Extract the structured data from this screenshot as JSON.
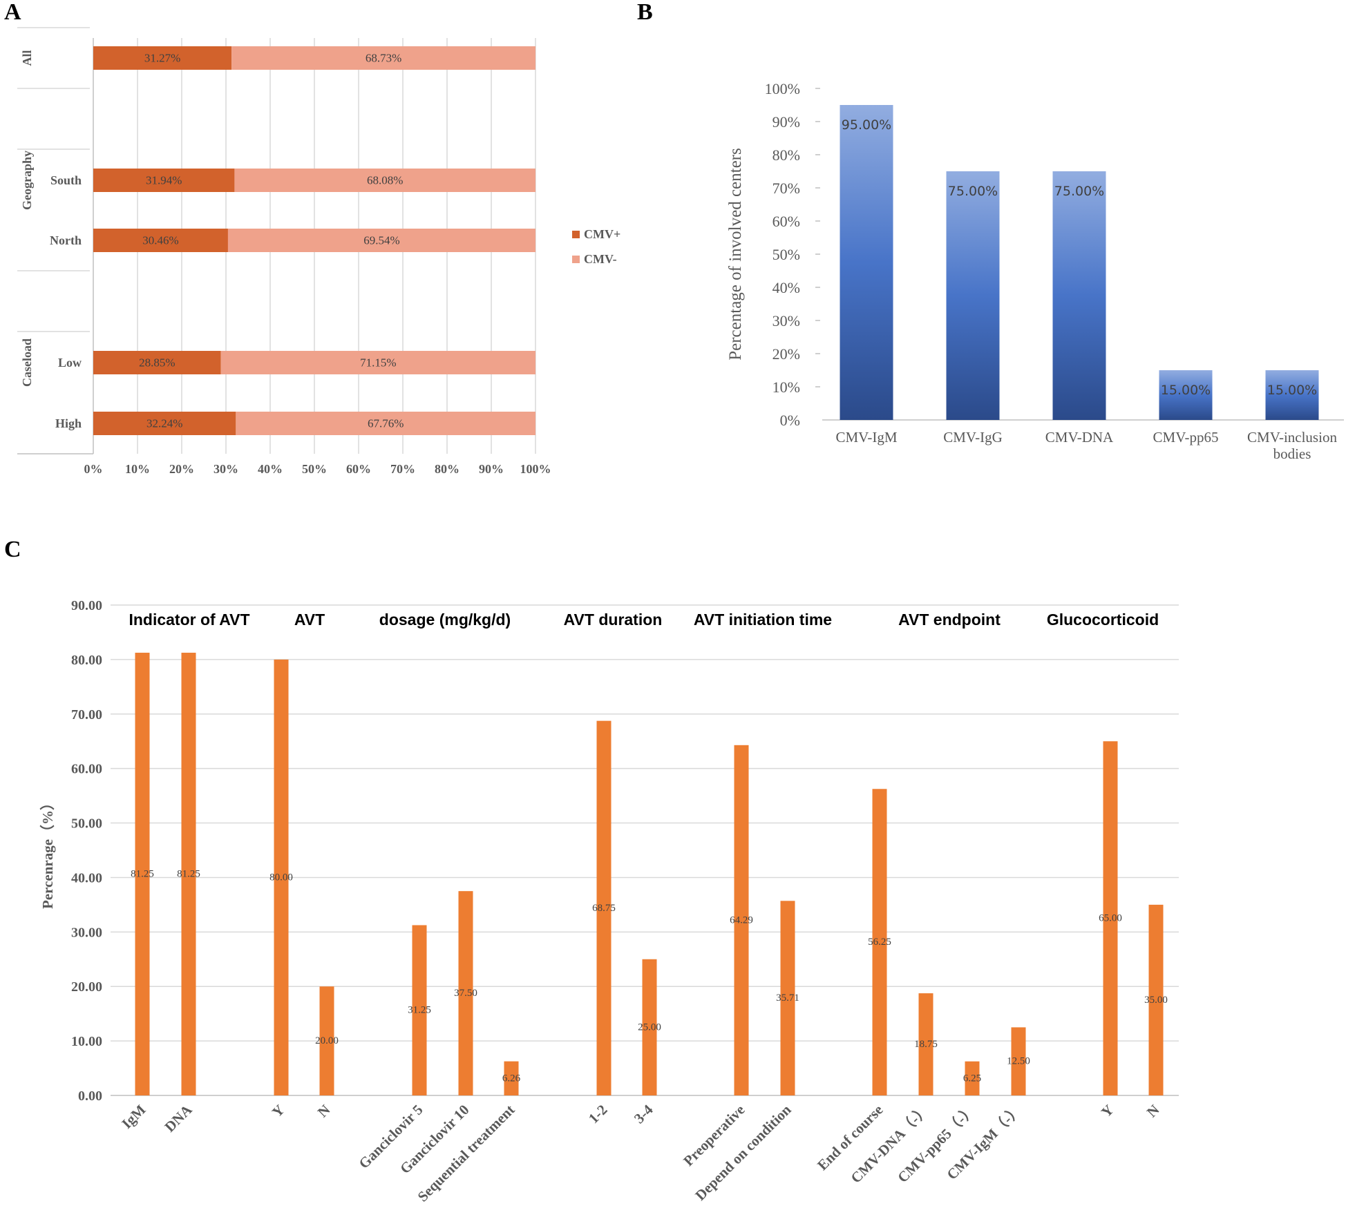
{
  "panels": {
    "a": "A",
    "b": "B",
    "c": "C"
  },
  "colors": {
    "cmv_pos": "#d2622c",
    "cmv_neg": "#efa28b",
    "blue_top": "#92ade0",
    "blue_mid": "#4874c8",
    "blue_bottom": "#2b4a8a",
    "orange": "#ed7d31"
  },
  "chart_data": [
    {
      "id": "A",
      "type": "bar",
      "orientation": "horizontal",
      "stacked": true,
      "xlim": [
        0,
        100
      ],
      "xticks": [
        "0%",
        "10%",
        "20%",
        "30%",
        "40%",
        "50%",
        "60%",
        "70%",
        "80%",
        "90%",
        "100%"
      ],
      "groups": [
        {
          "name": "All",
          "rows": [
            {
              "label": "",
              "pos": 31.27,
              "neg": 68.73
            }
          ]
        },
        {
          "name": "Geography",
          "rows": [
            {
              "label": "South",
              "pos": 31.94,
              "neg": 68.08
            },
            {
              "label": "North",
              "pos": 30.46,
              "neg": 69.54
            }
          ]
        },
        {
          "name": "Caseload",
          "rows": [
            {
              "label": "Low",
              "pos": 28.85,
              "neg": 71.15
            },
            {
              "label": "High",
              "pos": 32.24,
              "neg": 67.76
            }
          ]
        }
      ],
      "labels": {
        "All": "31.27%|68.73%",
        "South": "31.94%|68.08%",
        "North": "30.46%|69.54%",
        "Low": "28.85%|71.15%",
        "High": "32.24%|67.76%"
      },
      "legend": [
        "CMV+",
        "CMV-"
      ],
      "legend_position": "right"
    },
    {
      "id": "B",
      "type": "bar",
      "ylabel": "Percentage of involved centers",
      "ylim": [
        0,
        100
      ],
      "yticks": [
        "0%",
        "10%",
        "20%",
        "30%",
        "40%",
        "50%",
        "60%",
        "70%",
        "80%",
        "90%",
        "100%"
      ],
      "categories": [
        "CMV-IgM",
        "CMV-IgG",
        "CMV-DNA",
        "CMV-pp65",
        "CMV-inclusion bodies"
      ],
      "values": [
        95,
        75,
        75,
        15,
        15
      ],
      "value_labels": [
        "95.00%",
        "75.00%",
        "75.00%",
        "15.00%",
        "15.00%"
      ]
    },
    {
      "id": "C",
      "type": "bar",
      "ylabel": "Percenrage（%）",
      "ylim": [
        0,
        90
      ],
      "yticks": [
        "0.00",
        "10.00",
        "20.00",
        "30.00",
        "40.00",
        "50.00",
        "60.00",
        "70.00",
        "80.00",
        "90.00"
      ],
      "groups": [
        {
          "title": "Indicator of AVT",
          "items": [
            {
              "label": "IgM",
              "value": 81.25,
              "text": "81.25"
            },
            {
              "label": "DNA",
              "value": 81.25,
              "text": "81.25"
            }
          ]
        },
        {
          "title": "AVT",
          "items": [
            {
              "label": "Y",
              "value": 80.0,
              "text": "80.00"
            },
            {
              "label": "N",
              "value": 20.0,
              "text": "20.00"
            }
          ]
        },
        {
          "title": "dosage (mg/kg/d)",
          "items": [
            {
              "label": "Ganciclovir 5",
              "value": 31.25,
              "text": "31.25"
            },
            {
              "label": "Ganciclovir 10",
              "value": 37.5,
              "text": "37.50"
            },
            {
              "label": "Sequential treatment",
              "value": 6.26,
              "text": "6.26"
            }
          ]
        },
        {
          "title": "AVT duration",
          "items": [
            {
              "label": "1-2",
              "value": 68.75,
              "text": "68.75"
            },
            {
              "label": "3-4",
              "value": 25.0,
              "text": "25.00"
            }
          ]
        },
        {
          "title": "AVT initiation time",
          "items": [
            {
              "label": "Preoperative",
              "value": 64.29,
              "text": "64.29"
            },
            {
              "label": "Depend on condition",
              "value": 35.71,
              "text": "35.71"
            }
          ]
        },
        {
          "title": "AVT endpoint",
          "items": [
            {
              "label": "End of course",
              "value": 56.25,
              "text": "56.25"
            },
            {
              "label": "CMV-DNA（-）",
              "value": 18.75,
              "text": "18.75"
            },
            {
              "label": "CMV-pp65（-）",
              "value": 6.25,
              "text": "6.25"
            },
            {
              "label": "CMV-IgM（-）",
              "value": 12.5,
              "text": "12.50"
            }
          ]
        },
        {
          "title": "Glucocorticoid",
          "items": [
            {
              "label": "Y",
              "value": 65.0,
              "text": "65.00"
            },
            {
              "label": "N",
              "value": 35.0,
              "text": "35.00"
            }
          ]
        }
      ]
    }
  ]
}
